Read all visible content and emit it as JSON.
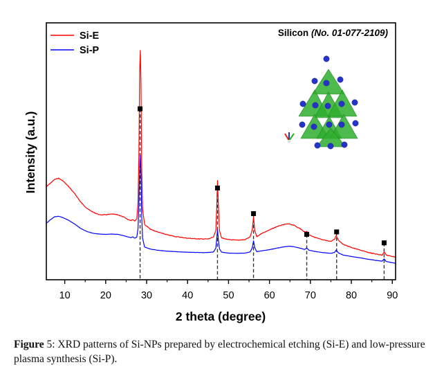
{
  "chart_data": {
    "type": "line",
    "title": "",
    "xlabel": "2 theta (degree)",
    "ylabel": "Intensity (a.u.)",
    "xlim": [
      5.5,
      90.8
    ],
    "ylim": [
      0,
      100
    ],
    "x_ticks": [
      10,
      20,
      30,
      40,
      50,
      60,
      70,
      80,
      90
    ],
    "x_minor_ticks": [
      15,
      25,
      35,
      45,
      55,
      65,
      75,
      85
    ],
    "y_ticks_shown": false,
    "grid": false,
    "legend": {
      "placement": "top-left",
      "entries": [
        {
          "label": "Si-E",
          "color": "#ff0000"
        },
        {
          "label": "Si-P",
          "color": "#0000ff"
        }
      ]
    },
    "annotation": {
      "text": "Silicon ",
      "ref": "(No. 01-077-2109)",
      "placement": "top-right",
      "inset": "Silicon crystal structure (tetrahedral unit cell illustration)"
    },
    "reference_peaks": {
      "name": "Silicon No. 01-077-2109",
      "x": [
        28.4,
        47.3,
        56.1,
        69.1,
        76.4,
        88.0
      ],
      "marker_y": [
        69,
        36.5,
        26,
        17.5,
        18.5,
        14
      ]
    },
    "series": [
      {
        "name": "Si-E",
        "color": "#ff0000",
        "points": [
          [
            5.5,
            37
          ],
          [
            6.5,
            38.5
          ],
          [
            7.5,
            40
          ],
          [
            8.5,
            40.5
          ],
          [
            9.5,
            39.5
          ],
          [
            11,
            37
          ],
          [
            12.5,
            34
          ],
          [
            14,
            30.5
          ],
          [
            15.5,
            28
          ],
          [
            17,
            26.5
          ],
          [
            18.5,
            25.5
          ],
          [
            20,
            25.5
          ],
          [
            21.5,
            25.8
          ],
          [
            23,
            25.5
          ],
          [
            24.5,
            24.5
          ],
          [
            25.5,
            23.5
          ],
          [
            26.2,
            23.2
          ],
          [
            26.6,
            23.6
          ],
          [
            27.1,
            23
          ],
          [
            27.6,
            24
          ],
          [
            27.9,
            31
          ],
          [
            28.1,
            50
          ],
          [
            28.3,
            85
          ],
          [
            28.45,
            93
          ],
          [
            28.6,
            80
          ],
          [
            28.8,
            45
          ],
          [
            29.0,
            28
          ],
          [
            29.5,
            21.5
          ],
          [
            31,
            19.5
          ],
          [
            33,
            18.3
          ],
          [
            35,
            17.3
          ],
          [
            37,
            16.6
          ],
          [
            40,
            15.9
          ],
          [
            43,
            15.6
          ],
          [
            45,
            15.6
          ],
          [
            46.3,
            16.3
          ],
          [
            46.9,
            19
          ],
          [
            47.1,
            28
          ],
          [
            47.3,
            39.5
          ],
          [
            47.5,
            30
          ],
          [
            47.8,
            19
          ],
          [
            48.3,
            16
          ],
          [
            50,
            15.3
          ],
          [
            52,
            15.1
          ],
          [
            54,
            15.3
          ],
          [
            55.3,
            16.5
          ],
          [
            55.8,
            19.5
          ],
          [
            56.1,
            24.5
          ],
          [
            56.4,
            19
          ],
          [
            56.9,
            16.5
          ],
          [
            58,
            17.8
          ],
          [
            60,
            19.3
          ],
          [
            62,
            20.8
          ],
          [
            64,
            21.7
          ],
          [
            65,
            21.7
          ],
          [
            66,
            21.2
          ],
          [
            67.5,
            19.8
          ],
          [
            68.6,
            18.4
          ],
          [
            69.1,
            18.8
          ],
          [
            69.6,
            17.4
          ],
          [
            71,
            16.3
          ],
          [
            73,
            15.2
          ],
          [
            75,
            14.6
          ],
          [
            75.9,
            15.5
          ],
          [
            76.3,
            17.1
          ],
          [
            76.8,
            15.2
          ],
          [
            78,
            13.4
          ],
          [
            80,
            12.1
          ],
          [
            82,
            11.1
          ],
          [
            84,
            10.1
          ],
          [
            86,
            9.4
          ],
          [
            87.5,
            9.0
          ],
          [
            88.0,
            10.3
          ],
          [
            88.5,
            9.0
          ],
          [
            89.5,
            8.6
          ],
          [
            90.8,
            8.2
          ]
        ]
      },
      {
        "name": "Si-P",
        "color": "#0000ff",
        "points": [
          [
            5.5,
            22
          ],
          [
            6.5,
            23.5
          ],
          [
            7.5,
            24.7
          ],
          [
            8.5,
            24.9
          ],
          [
            9.5,
            24.4
          ],
          [
            11,
            23.2
          ],
          [
            12.5,
            21.6
          ],
          [
            14,
            19.8
          ],
          [
            15.5,
            18.6
          ],
          [
            17,
            17.9
          ],
          [
            18.5,
            17.6
          ],
          [
            20,
            17.5
          ],
          [
            21.5,
            17.6
          ],
          [
            23,
            17.5
          ],
          [
            24.5,
            16.9
          ],
          [
            25.5,
            16.4
          ],
          [
            26.2,
            16.1
          ],
          [
            26.6,
            16.5
          ],
          [
            27.1,
            15.9
          ],
          [
            27.6,
            16.4
          ],
          [
            27.9,
            20
          ],
          [
            28.1,
            30
          ],
          [
            28.3,
            45
          ],
          [
            28.45,
            50
          ],
          [
            28.6,
            42
          ],
          [
            28.8,
            25
          ],
          [
            29.0,
            16
          ],
          [
            29.5,
            12.3
          ],
          [
            31,
            11.4
          ],
          [
            33,
            10.9
          ],
          [
            35,
            10.6
          ],
          [
            38,
            10.3
          ],
          [
            41,
            10.1
          ],
          [
            44,
            10.0
          ],
          [
            46.3,
            10.2
          ],
          [
            46.9,
            11.8
          ],
          [
            47.1,
            15.5
          ],
          [
            47.3,
            19.4
          ],
          [
            47.5,
            15.5
          ],
          [
            47.8,
            11.5
          ],
          [
            48.3,
            10.2
          ],
          [
            50,
            9.8
          ],
          [
            52,
            9.7
          ],
          [
            54,
            9.8
          ],
          [
            55.3,
            10.3
          ],
          [
            55.8,
            12
          ],
          [
            56.1,
            14.8
          ],
          [
            56.4,
            12
          ],
          [
            56.9,
            10.4
          ],
          [
            58,
            10.7
          ],
          [
            60,
            11.2
          ],
          [
            62,
            11.9
          ],
          [
            64,
            12.5
          ],
          [
            65,
            12.6
          ],
          [
            66,
            12.4
          ],
          [
            67.5,
            11.8
          ],
          [
            68.6,
            11.3
          ],
          [
            69.1,
            11.9
          ],
          [
            69.6,
            11.0
          ],
          [
            71,
            10.5
          ],
          [
            73,
            10.0
          ],
          [
            75,
            9.7
          ],
          [
            75.9,
            10.1
          ],
          [
            76.3,
            11.1
          ],
          [
            76.8,
            9.9
          ],
          [
            78,
            9.0
          ],
          [
            80,
            8.4
          ],
          [
            82,
            7.9
          ],
          [
            84,
            7.3
          ],
          [
            86,
            6.8
          ],
          [
            87.5,
            6.5
          ],
          [
            88.0,
            7.4
          ],
          [
            88.5,
            6.4
          ],
          [
            89.5,
            6.0
          ],
          [
            90.8,
            5.6
          ]
        ]
      }
    ]
  },
  "caption": {
    "label": "Figure",
    "number": " 5",
    "text": ": XRD patterns of Si-NPs prepared by electrochemical etching (Si-E) and low-pressure plasma synthesis (Si-P)."
  }
}
